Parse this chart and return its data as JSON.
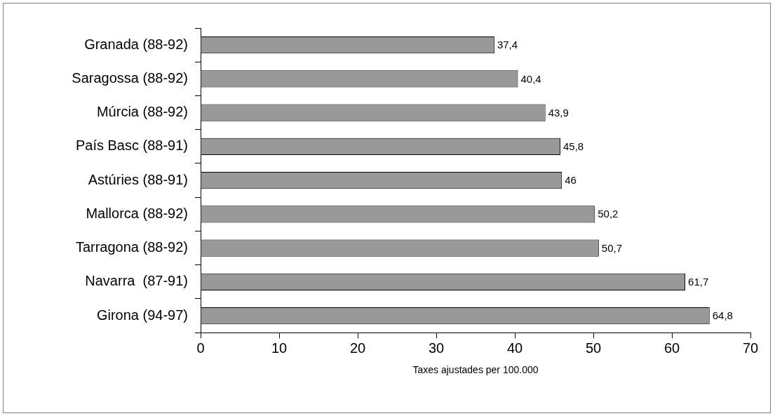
{
  "chart_data": {
    "type": "bar",
    "orientation": "horizontal",
    "xlabel": "Taxes ajustades per 100.000",
    "categories": [
      "Granada (88-92)",
      "Saragossa (88-92)",
      "Múrcia (88-92)",
      "País Basc (88-91)",
      "Astúries (88-91)",
      "Mallorca (88-92)",
      "Tarragona (88-92)",
      "Navarra  (87-91)",
      "Girona (94-97)"
    ],
    "values": [
      37.4,
      40.4,
      43.9,
      45.8,
      46,
      50.2,
      50.7,
      61.7,
      64.8
    ],
    "value_labels": [
      "37,4",
      "40,4",
      "43,9",
      "45,8",
      "46",
      "50,2",
      "50,7",
      "61,7",
      "64,8"
    ],
    "color": "#999999",
    "xlim": [
      0,
      70
    ],
    "xticks": [
      0,
      10,
      20,
      30,
      40,
      50,
      60,
      70
    ],
    "grid": false,
    "legend": false
  }
}
